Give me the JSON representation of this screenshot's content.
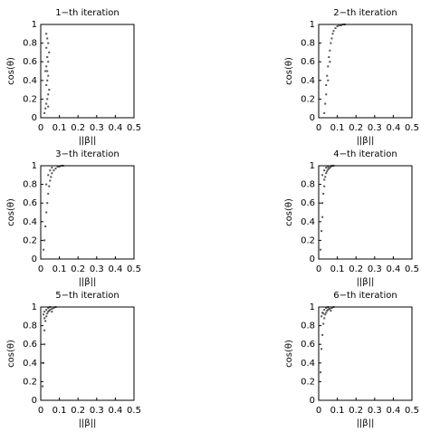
{
  "chart_data": [
    {
      "type": "scatter",
      "title": "1−th iteration",
      "x_label": "||β||",
      "y_label": "cos(θ)",
      "color": "#555555",
      "xlim": [
        0,
        0.5
      ],
      "ylim": [
        0,
        1
      ],
      "xticks": [
        0,
        0.1,
        0.2,
        0.3,
        0.4,
        0.5
      ],
      "yticks": [
        0,
        0.2,
        0.4,
        0.6,
        0.8,
        1
      ],
      "x": [
        0.02,
        0.025,
        0.03,
        0.035,
        0.04,
        0.045,
        0.03,
        0.035,
        0.04,
        0.025,
        0.03,
        0.04,
        0.035,
        0.045,
        0.03,
        0.04,
        0.035,
        0.03,
        0.04,
        0.035
      ],
      "values": [
        0.05,
        0.1,
        0.15,
        0.2,
        0.25,
        0.3,
        0.35,
        0.4,
        0.45,
        0.5,
        0.55,
        0.6,
        0.65,
        0.7,
        0.75,
        0.8,
        0.85,
        0.9,
        0.12,
        0.5
      ]
    },
    {
      "type": "scatter",
      "title": "2−th iteration",
      "x_label": "||β||",
      "y_label": "cos(θ)",
      "color": "#555555",
      "xlim": [
        0,
        0.5
      ],
      "ylim": [
        0,
        1
      ],
      "xticks": [
        0,
        0.1,
        0.2,
        0.3,
        0.4,
        0.5
      ],
      "yticks": [
        0,
        0.2,
        0.4,
        0.6,
        0.8,
        1
      ],
      "x": [
        0.03,
        0.035,
        0.04,
        0.04,
        0.045,
        0.05,
        0.055,
        0.06,
        0.065,
        0.07,
        0.075,
        0.08,
        0.09,
        0.1,
        0.11,
        0.12,
        0.13,
        0.14,
        0.05,
        0.06
      ],
      "values": [
        0.05,
        0.15,
        0.25,
        0.35,
        0.45,
        0.55,
        0.65,
        0.72,
        0.8,
        0.85,
        0.9,
        0.93,
        0.96,
        0.98,
        0.99,
        0.99,
        1,
        1,
        0.4,
        0.6
      ]
    },
    {
      "type": "scatter",
      "title": "3−th iteration",
      "x_label": "||β||",
      "y_label": "cos(θ)",
      "color": "#555555",
      "xlim": [
        0,
        0.5
      ],
      "ylim": [
        0,
        1
      ],
      "xticks": [
        0,
        0.1,
        0.2,
        0.3,
        0.4,
        0.5
      ],
      "yticks": [
        0,
        0.2,
        0.4,
        0.6,
        0.8,
        1
      ],
      "x": [
        0.015,
        0.02,
        0.025,
        0.03,
        0.035,
        0.04,
        0.045,
        0.05,
        0.055,
        0.06,
        0.07,
        0.08,
        0.09,
        0.1,
        0.11,
        0.12,
        0.03,
        0.04,
        0.05,
        0.06
      ],
      "values": [
        0.1,
        0.2,
        0.35,
        0.5,
        0.6,
        0.7,
        0.78,
        0.84,
        0.88,
        0.92,
        0.95,
        0.97,
        0.99,
        0.99,
        1,
        1,
        0.8,
        0.9,
        0.95,
        0.98
      ]
    },
    {
      "type": "scatter",
      "title": "4−th iteration",
      "x_label": "||β||",
      "y_label": "cos(θ)",
      "color": "#555555",
      "xlim": [
        0,
        0.5
      ],
      "ylim": [
        0,
        1
      ],
      "xticks": [
        0,
        0.1,
        0.2,
        0.3,
        0.4,
        0.5
      ],
      "yticks": [
        0,
        0.2,
        0.4,
        0.6,
        0.8,
        1
      ],
      "x": [
        0.01,
        0.015,
        0.02,
        0.02,
        0.025,
        0.03,
        0.03,
        0.035,
        0.04,
        0.045,
        0.05,
        0.055,
        0.06,
        0.065,
        0.07,
        0.08,
        0.02,
        0.03,
        0.04,
        0.05
      ],
      "values": [
        0.1,
        0.3,
        0.45,
        0.6,
        0.7,
        0.78,
        0.85,
        0.88,
        0.92,
        0.94,
        0.96,
        0.97,
        0.98,
        0.99,
        1,
        1,
        0.9,
        0.95,
        0.98,
        0.99
      ]
    },
    {
      "type": "scatter",
      "title": "5−th iteration",
      "x_label": "||β||",
      "y_label": "cos(θ)",
      "color": "#555555",
      "xlim": [
        0,
        0.5
      ],
      "ylim": [
        0,
        1
      ],
      "xticks": [
        0,
        0.1,
        0.2,
        0.3,
        0.4,
        0.5
      ],
      "yticks": [
        0,
        0.2,
        0.4,
        0.6,
        0.8,
        1
      ],
      "x": [
        0.01,
        0.015,
        0.02,
        0.02,
        0.025,
        0.03,
        0.035,
        0.04,
        0.045,
        0.05,
        0.06,
        0.07,
        0.08,
        0.02,
        0.03,
        0.04,
        0.05,
        0.015,
        0.02,
        0.06
      ],
      "values": [
        0.15,
        0.4,
        0.6,
        0.75,
        0.85,
        0.9,
        0.93,
        0.95,
        0.96,
        0.97,
        0.98,
        0.99,
        1,
        0.95,
        0.97,
        0.99,
        1,
        0.92,
        0.88,
        0.95
      ]
    },
    {
      "type": "scatter",
      "title": "6−th iteration",
      "x_label": "||β||",
      "y_label": "cos(θ)",
      "color": "#555555",
      "xlim": [
        0,
        0.5
      ],
      "ylim": [
        0,
        1
      ],
      "xticks": [
        0,
        0.1,
        0.2,
        0.3,
        0.4,
        0.5
      ],
      "yticks": [
        0,
        0.2,
        0.4,
        0.6,
        0.8,
        1
      ],
      "x": [
        0.01,
        0.015,
        0.02,
        0.025,
        0.03,
        0.035,
        0.04,
        0.045,
        0.05,
        0.055,
        0.06,
        0.07,
        0.08,
        0.02,
        0.03,
        0.04,
        0.05,
        0.015,
        0.025,
        0.065
      ],
      "values": [
        0.3,
        0.55,
        0.7,
        0.82,
        0.88,
        0.92,
        0.94,
        0.96,
        0.97,
        0.98,
        0.98,
        0.99,
        1,
        0.94,
        0.97,
        0.99,
        1,
        0.9,
        0.93,
        0.96
      ]
    }
  ]
}
